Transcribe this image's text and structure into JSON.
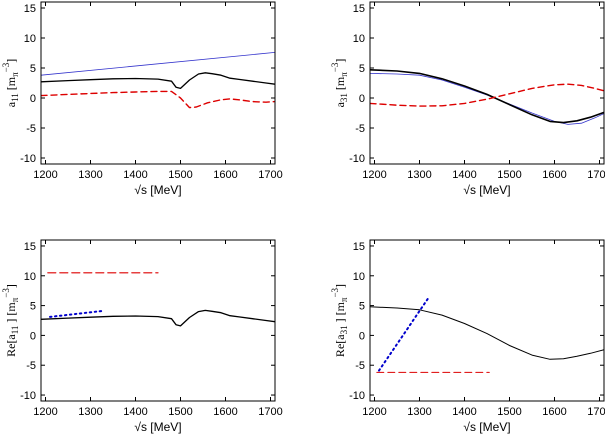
{
  "figure": {
    "xlabel_sqrt": "√s",
    "xlabel_unit": "[MeV]"
  },
  "chart_data": [
    {
      "type": "line",
      "id": "a11",
      "ylabel": {
        "base": "a",
        "sub": "11",
        "unit_pre": "[m",
        "unit_sub": "π",
        "unit_sup": "−3",
        "unit_post": "]"
      },
      "xlim": [
        1190,
        1710
      ],
      "ylim": [
        -11,
        16
      ],
      "xticks": [
        1200,
        1300,
        1400,
        1500,
        1600,
        1700
      ],
      "yticks": [
        -10,
        -5,
        0,
        5,
        10,
        15
      ],
      "series": [
        {
          "name": "blue",
          "color": "#3333cc",
          "dash": "",
          "width": 0.8,
          "x": [
            1190,
            1710
          ],
          "y": [
            3.8,
            7.6
          ]
        },
        {
          "name": "black",
          "color": "#000000",
          "dash": "",
          "width": 1.3,
          "x": [
            1190,
            1250,
            1300,
            1350,
            1400,
            1450,
            1480,
            1490,
            1500,
            1520,
            1540,
            1555,
            1570,
            1590,
            1610,
            1630,
            1660,
            1690,
            1710
          ],
          "y": [
            2.7,
            2.9,
            3.05,
            3.2,
            3.25,
            3.15,
            2.8,
            1.8,
            1.6,
            3.0,
            4.0,
            4.2,
            4.05,
            3.8,
            3.3,
            3.1,
            2.8,
            2.5,
            2.3
          ]
        },
        {
          "name": "red",
          "color": "#dd0000",
          "dash": "6,4",
          "width": 1.4,
          "x": [
            1190,
            1250,
            1300,
            1350,
            1400,
            1450,
            1480,
            1500,
            1520,
            1535,
            1560,
            1590,
            1610,
            1630,
            1660,
            1690,
            1710
          ],
          "y": [
            0.4,
            0.6,
            0.75,
            0.9,
            1.0,
            1.1,
            1.1,
            0.0,
            -1.6,
            -1.5,
            -0.8,
            -0.3,
            -0.15,
            -0.3,
            -0.6,
            -0.7,
            -0.6
          ]
        }
      ]
    },
    {
      "type": "line",
      "id": "a31",
      "ylabel": {
        "base": "a",
        "sub": "31",
        "unit_pre": "[m",
        "unit_sub": "π",
        "unit_sup": "−3",
        "unit_post": "]"
      },
      "xlim": [
        1190,
        1710
      ],
      "ylim": [
        -11,
        16
      ],
      "xticks": [
        1200,
        1300,
        1400,
        1500,
        1600,
        1700
      ],
      "yticks": [
        -10,
        -5,
        0,
        5,
        10,
        15
      ],
      "series": [
        {
          "name": "blue",
          "color": "#3333cc",
          "dash": "",
          "width": 0.8,
          "x": [
            1190,
            1250,
            1300,
            1350,
            1400,
            1450,
            1500,
            1550,
            1600,
            1630,
            1660,
            1690,
            1710
          ],
          "y": [
            4.1,
            4.0,
            3.8,
            3.0,
            1.8,
            0.5,
            -1.0,
            -2.5,
            -3.9,
            -4.4,
            -4.2,
            -3.3,
            -2.6
          ]
        },
        {
          "name": "black",
          "color": "#000000",
          "dash": "",
          "width": 1.6,
          "x": [
            1190,
            1250,
            1300,
            1350,
            1400,
            1450,
            1500,
            1550,
            1590,
            1620,
            1650,
            1680,
            1710
          ],
          "y": [
            4.7,
            4.5,
            4.1,
            3.2,
            2.0,
            0.6,
            -1.1,
            -2.8,
            -3.9,
            -4.1,
            -3.8,
            -3.2,
            -2.4
          ]
        },
        {
          "name": "red",
          "color": "#dd0000",
          "dash": "6,4",
          "width": 1.4,
          "x": [
            1190,
            1250,
            1300,
            1350,
            1400,
            1450,
            1500,
            1550,
            1600,
            1630,
            1660,
            1690,
            1710
          ],
          "y": [
            -0.9,
            -1.2,
            -1.35,
            -1.3,
            -0.9,
            -0.2,
            0.7,
            1.6,
            2.2,
            2.3,
            2.1,
            1.6,
            1.2
          ]
        }
      ]
    },
    {
      "type": "line",
      "id": "re_a11",
      "ylabel": {
        "base": "Re[a",
        "sub": "11",
        "unit_pre": "] [m",
        "unit_sub": "π",
        "unit_sup": "−3",
        "unit_post": "]"
      },
      "xlim": [
        1190,
        1710
      ],
      "ylim": [
        -11,
        16
      ],
      "xticks": [
        1200,
        1300,
        1400,
        1500,
        1600,
        1700
      ],
      "yticks": [
        -10,
        -5,
        0,
        5,
        10,
        15
      ],
      "series": [
        {
          "name": "red",
          "color": "#dd0000",
          "dash": "8,4",
          "width": 1.2,
          "x": [
            1205,
            1450
          ],
          "y": [
            10.5,
            10.5
          ]
        },
        {
          "name": "blue",
          "color": "#0000cc",
          "dash": "1.5,3.5",
          "width": 2.0,
          "x": [
            1210,
            1325
          ],
          "y": [
            3.1,
            4.1
          ]
        },
        {
          "name": "black",
          "color": "#000000",
          "dash": "",
          "width": 1.3,
          "x": [
            1190,
            1250,
            1300,
            1350,
            1400,
            1450,
            1480,
            1490,
            1500,
            1520,
            1540,
            1555,
            1570,
            1590,
            1610,
            1630,
            1660,
            1690,
            1710
          ],
          "y": [
            2.7,
            2.9,
            3.05,
            3.2,
            3.25,
            3.15,
            2.8,
            1.8,
            1.6,
            3.0,
            4.0,
            4.2,
            4.05,
            3.8,
            3.3,
            3.1,
            2.8,
            2.5,
            2.3
          ]
        }
      ]
    },
    {
      "type": "line",
      "id": "re_a31",
      "ylabel": {
        "base": "Re[a",
        "sub": "31",
        "unit_pre": "] [m",
        "unit_sub": "π",
        "unit_sup": "−3",
        "unit_post": "]"
      },
      "xlim": [
        1190,
        1710
      ],
      "ylim": [
        -11,
        16
      ],
      "xticks": [
        1200,
        1300,
        1400,
        1500,
        1600,
        1700
      ],
      "yticks": [
        -10,
        -5,
        0,
        5,
        10,
        15
      ],
      "series": [
        {
          "name": "red",
          "color": "#dd0000",
          "dash": "7,4",
          "width": 1.0,
          "x": [
            1205,
            1455
          ],
          "y": [
            -6.2,
            -6.2
          ]
        },
        {
          "name": "blue",
          "color": "#0000cc",
          "dash": "1.5,3.5",
          "width": 2.0,
          "x": [
            1210,
            1320
          ],
          "y": [
            -5.9,
            6.3
          ]
        },
        {
          "name": "black",
          "color": "#000000",
          "dash": "",
          "width": 1.0,
          "x": [
            1190,
            1250,
            1300,
            1350,
            1400,
            1450,
            1500,
            1550,
            1590,
            1620,
            1650,
            1680,
            1710
          ],
          "y": [
            4.8,
            4.6,
            4.3,
            3.4,
            2.0,
            0.3,
            -1.7,
            -3.3,
            -4.0,
            -3.9,
            -3.5,
            -3.0,
            -2.4
          ]
        }
      ]
    }
  ]
}
